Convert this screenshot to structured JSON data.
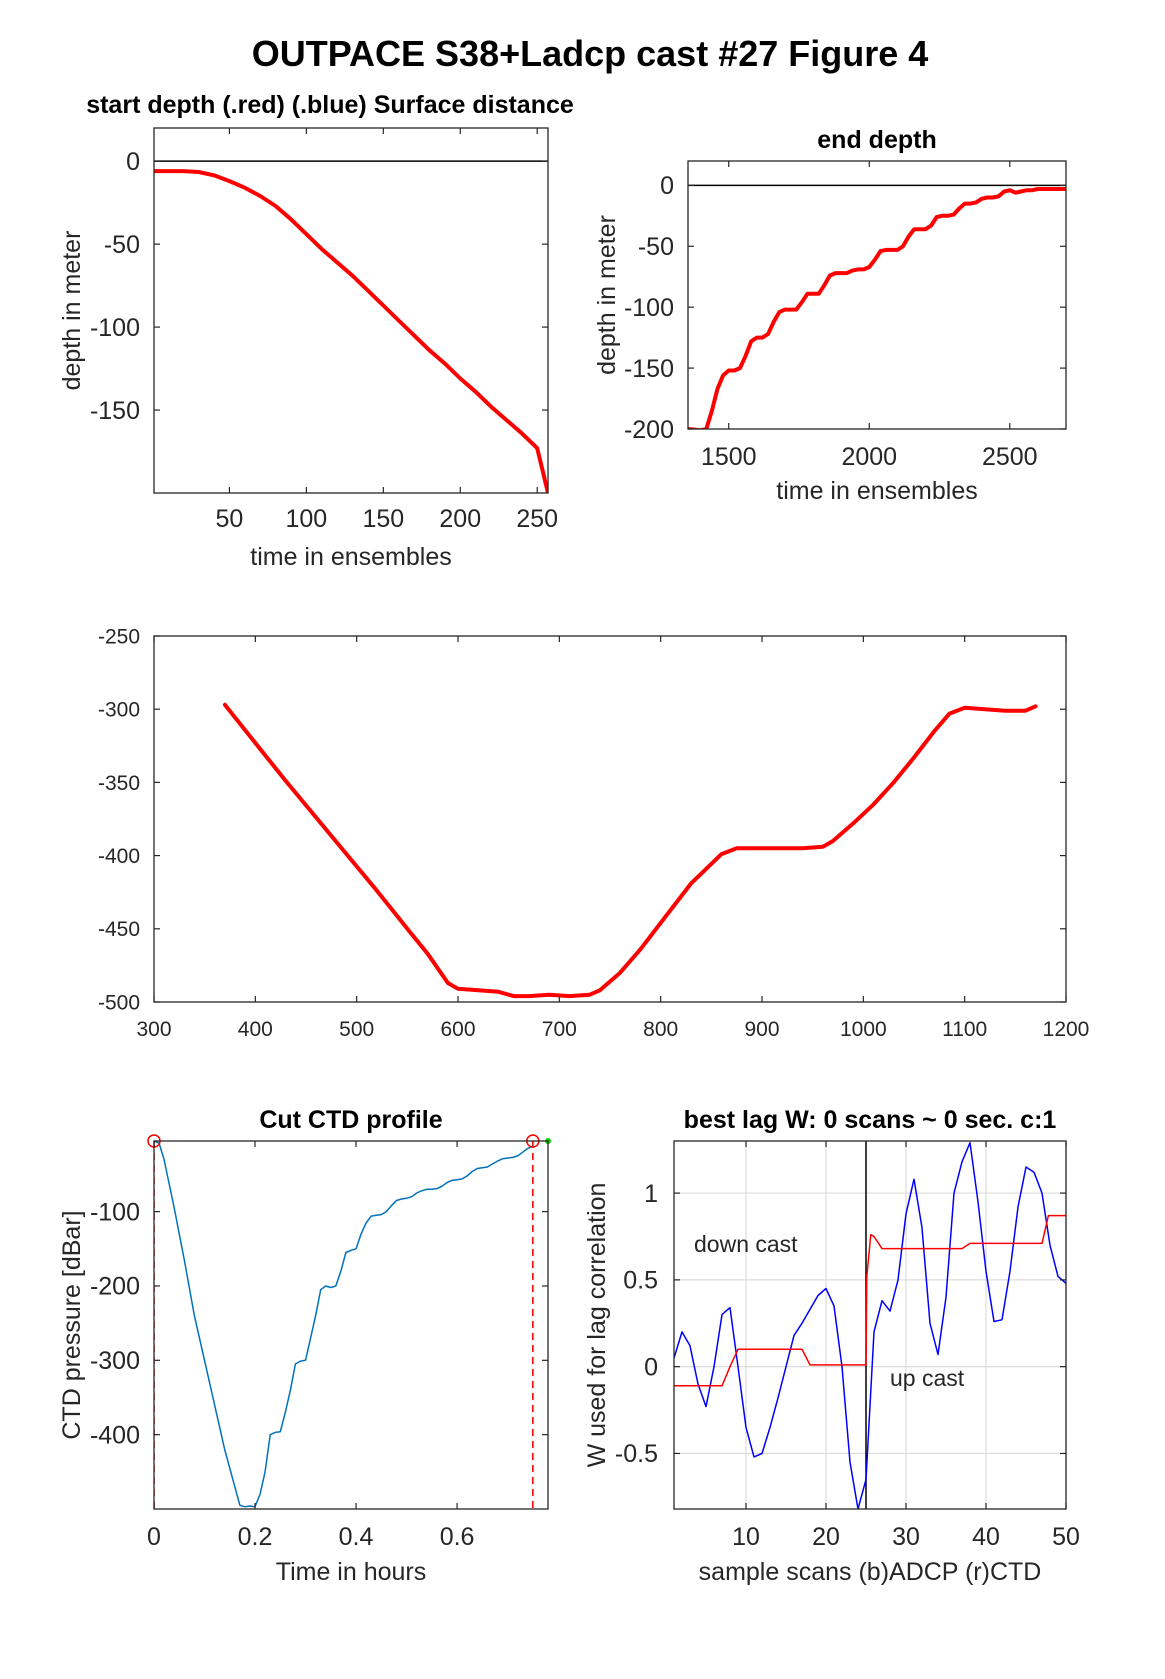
{
  "figure": {
    "title": "OUTPACE S38+Ladcp cast #27   Figure 4"
  },
  "chart_data": [
    {
      "id": "start",
      "type": "line",
      "title": "start depth (.red) (.blue) Surface distance",
      "xlabel": "time in ensembles",
      "ylabel": "depth in meter",
      "xlim": [
        1,
        257
      ],
      "ylim": [
        -200,
        20
      ],
      "xticks": [
        50,
        100,
        150,
        200,
        250
      ],
      "yticks": [
        0,
        -50,
        -100,
        -150
      ],
      "grid": false,
      "hline": 0,
      "series": [
        {
          "color": "#ff0000",
          "width": 4,
          "x": [
            1,
            10,
            20,
            30,
            40,
            50,
            60,
            70,
            80,
            90,
            100,
            110,
            120,
            130,
            140,
            150,
            160,
            170,
            180,
            190,
            200,
            210,
            220,
            230,
            240,
            250,
            257
          ],
          "y": [
            -6,
            -6,
            -6,
            -6.5,
            -8.5,
            -12,
            -16,
            -21,
            -27,
            -35,
            -44,
            -53,
            -61,
            -69,
            -78,
            -87,
            -96,
            -105,
            -114,
            -122,
            -131,
            -139,
            -148,
            -156,
            -164,
            -173,
            -200
          ]
        }
      ]
    },
    {
      "id": "end",
      "type": "line",
      "title": "end depth",
      "xlabel": "time in ensembles",
      "ylabel": "depth in meter",
      "xlim": [
        1355,
        2700
      ],
      "ylim": [
        -200,
        20
      ],
      "xticks": [
        1500,
        2000,
        2500
      ],
      "yticks": [
        0,
        -50,
        -100,
        -150,
        -200
      ],
      "grid": false,
      "hline": 0,
      "series": [
        {
          "color": "#ff0000",
          "width": 4,
          "x": [
            1355,
            1400,
            1420,
            1440,
            1460,
            1480,
            1500,
            1520,
            1540,
            1560,
            1580,
            1600,
            1620,
            1640,
            1660,
            1680,
            1700,
            1720,
            1740,
            1760,
            1780,
            1800,
            1820,
            1840,
            1860,
            1880,
            1900,
            1920,
            1940,
            1960,
            1980,
            2000,
            2020,
            2040,
            2060,
            2080,
            2100,
            2120,
            2140,
            2160,
            2180,
            2200,
            2220,
            2240,
            2260,
            2280,
            2300,
            2320,
            2340,
            2360,
            2380,
            2400,
            2420,
            2440,
            2460,
            2480,
            2500,
            2520,
            2540,
            2560,
            2580,
            2600,
            2620,
            2640,
            2660,
            2680,
            2700
          ],
          "y": [
            -200,
            -201,
            -200,
            -185,
            -167,
            -156,
            -152,
            -152,
            -150,
            -140,
            -128,
            -125,
            -125,
            -122,
            -112,
            -104,
            -102,
            -102,
            -102,
            -96,
            -89,
            -89,
            -89,
            -82,
            -74,
            -72,
            -72,
            -72,
            -70,
            -69,
            -69,
            -67,
            -61,
            -54,
            -53,
            -53,
            -53,
            -50,
            -42,
            -36,
            -36,
            -36,
            -33,
            -26,
            -25,
            -25,
            -24,
            -19,
            -15,
            -15,
            -14,
            -11,
            -10,
            -10,
            -9,
            -5,
            -4,
            -6,
            -5,
            -4,
            -4,
            -3,
            -3,
            -3,
            -3,
            -3,
            -3
          ]
        }
      ]
    },
    {
      "id": "middle",
      "type": "line",
      "title": "",
      "xlabel": "",
      "ylabel": "",
      "xlim": [
        300,
        1200
      ],
      "ylim": [
        -500,
        -250
      ],
      "xticks": [
        300,
        400,
        500,
        600,
        700,
        800,
        900,
        1000,
        1100,
        1200
      ],
      "yticks": [
        -250,
        -300,
        -350,
        -400,
        -450,
        -500
      ],
      "grid": false,
      "series": [
        {
          "color": "#ff0000",
          "width": 4,
          "x": [
            370,
            400,
            430,
            460,
            490,
            520,
            550,
            570,
            590,
            600,
            620,
            640,
            655,
            670,
            690,
            710,
            730,
            740,
            760,
            780,
            800,
            830,
            860,
            875,
            890,
            910,
            940,
            960,
            970,
            990,
            1010,
            1030,
            1050,
            1070,
            1085,
            1100,
            1120,
            1140,
            1160,
            1170
          ],
          "y": [
            -297,
            -323,
            -349,
            -374,
            -399,
            -424,
            -450,
            -467,
            -487,
            -491,
            -492,
            -493,
            -496,
            -496,
            -495,
            -496,
            -495,
            -492,
            -480,
            -464,
            -446,
            -419,
            -399,
            -395,
            -395,
            -395,
            -395,
            -394,
            -390,
            -378,
            -365,
            -350,
            -333,
            -315,
            -303,
            -299,
            -300,
            -301,
            -301,
            -298
          ]
        }
      ]
    },
    {
      "id": "ctd",
      "type": "line",
      "title": "Cut CTD profile",
      "xlabel": "Time in hours",
      "ylabel": "CTD pressure [dBar]",
      "xlim": [
        0,
        0.78
      ],
      "ylim": [
        -500,
        -5
      ],
      "xticks": [
        0,
        0.2,
        0.4,
        0.6
      ],
      "xticklabels": [
        "0",
        "0.2",
        "0.4",
        "0.6"
      ],
      "yticks": [
        -100,
        -200,
        -300,
        -400
      ],
      "grid": false,
      "series": [
        {
          "color": "#0072bd",
          "width": 1.5,
          "x": [
            0,
            0.01,
            0.02,
            0.04,
            0.06,
            0.08,
            0.1,
            0.12,
            0.14,
            0.16,
            0.17,
            0.18,
            0.19,
            0.2,
            0.21,
            0.22,
            0.23,
            0.24,
            0.25,
            0.26,
            0.27,
            0.28,
            0.29,
            0.3,
            0.31,
            0.32,
            0.33,
            0.34,
            0.35,
            0.36,
            0.37,
            0.38,
            0.39,
            0.4,
            0.41,
            0.42,
            0.43,
            0.44,
            0.45,
            0.46,
            0.47,
            0.48,
            0.49,
            0.5,
            0.51,
            0.52,
            0.53,
            0.54,
            0.55,
            0.56,
            0.57,
            0.58,
            0.59,
            0.6,
            0.61,
            0.62,
            0.63,
            0.64,
            0.65,
            0.66,
            0.67,
            0.68,
            0.69,
            0.7,
            0.71,
            0.72,
            0.73,
            0.74,
            0.75
          ],
          "y": [
            -5,
            -8,
            -30,
            -95,
            -165,
            -240,
            -300,
            -360,
            -420,
            -470,
            -495,
            -497,
            -496,
            -497,
            -480,
            -450,
            -400,
            -397,
            -396,
            -370,
            -340,
            -305,
            -301,
            -300,
            -270,
            -240,
            -205,
            -200,
            -202,
            -200,
            -180,
            -155,
            -152,
            -150,
            -130,
            -115,
            -106,
            -105,
            -104,
            -100,
            -92,
            -85,
            -83,
            -82,
            -80,
            -75,
            -72,
            -70,
            -70,
            -69,
            -66,
            -61,
            -58,
            -57,
            -56,
            -52,
            -46,
            -42,
            -41,
            -40,
            -36,
            -32,
            -29,
            -28,
            -27,
            -25,
            -20,
            -15,
            -12
          ]
        }
      ],
      "markers": [
        {
          "x": 0,
          "y": -5,
          "color": "#ff0000",
          "symbol": "circle"
        },
        {
          "x": 0.75,
          "y": -5,
          "color": "#ff0000",
          "symbol": "circle"
        },
        {
          "x": 0.78,
          "y": -5,
          "color": "#00cc00",
          "symbol": "dot"
        }
      ],
      "vlines": [
        {
          "x": 0,
          "color": "#ff0000",
          "dash": true
        },
        {
          "x": 0.75,
          "color": "#ff0000",
          "dash": true
        }
      ]
    },
    {
      "id": "lag",
      "type": "line",
      "title": "best lag W: 0 scans ~ 0 sec.  c:1",
      "xlabel": "sample scans (b)ADCP (r)CTD",
      "ylabel": "W used for lag correlation",
      "xlim": [
        1,
        50
      ],
      "ylim": [
        -0.82,
        1.3
      ],
      "xticks": [
        10,
        20,
        30,
        40,
        50
      ],
      "yticks": [
        1,
        0.5,
        0,
        -0.5
      ],
      "yticklabels": [
        "1",
        "0.5",
        "0",
        "-0.5"
      ],
      "grid": true,
      "vline": 25,
      "annotations": [
        {
          "text": "down cast",
          "x": 3.5,
          "y": 0.66
        },
        {
          "text": "up cast",
          "x": 28,
          "y": -0.11
        }
      ],
      "series": [
        {
          "color": "#0000ff",
          "width": 1.5,
          "x": [
            1,
            2,
            3,
            4,
            5,
            6,
            7,
            8,
            9,
            10,
            11,
            12,
            13,
            14,
            15,
            16,
            17,
            18,
            19,
            20,
            21,
            22,
            23,
            24,
            25,
            26,
            27,
            28,
            29,
            30,
            31,
            32,
            33,
            34,
            35,
            36,
            37,
            38,
            39,
            40,
            41,
            42,
            43,
            44,
            45,
            46,
            47,
            48,
            49,
            50
          ],
          "y": [
            0.05,
            0.2,
            0.12,
            -0.1,
            -0.23,
            0.0,
            0.3,
            0.34,
            0.0,
            -0.35,
            -0.52,
            -0.5,
            -0.35,
            -0.18,
            0.0,
            0.18,
            0.25,
            0.33,
            0.41,
            0.45,
            0.35,
            0.0,
            -0.55,
            -0.82,
            -0.65,
            0.2,
            0.38,
            0.32,
            0.5,
            0.88,
            1.08,
            0.8,
            0.25,
            0.07,
            0.4,
            1.0,
            1.18,
            1.29,
            0.95,
            0.55,
            0.26,
            0.27,
            0.55,
            0.92,
            1.15,
            1.12,
            1.0,
            0.7,
            0.52,
            0.48
          ]
        },
        {
          "color": "#ff0000",
          "width": 1.5,
          "x": [
            1,
            6,
            7,
            8,
            9,
            17,
            18,
            25,
            25.1,
            25.6,
            26,
            27,
            37,
            38,
            47,
            47.8,
            50
          ],
          "y": [
            -0.11,
            -0.11,
            -0.11,
            0.0,
            0.1,
            0.1,
            0.01,
            0.01,
            0.52,
            0.76,
            0.75,
            0.68,
            0.68,
            0.71,
            0.71,
            0.87,
            0.87
          ]
        }
      ]
    }
  ]
}
